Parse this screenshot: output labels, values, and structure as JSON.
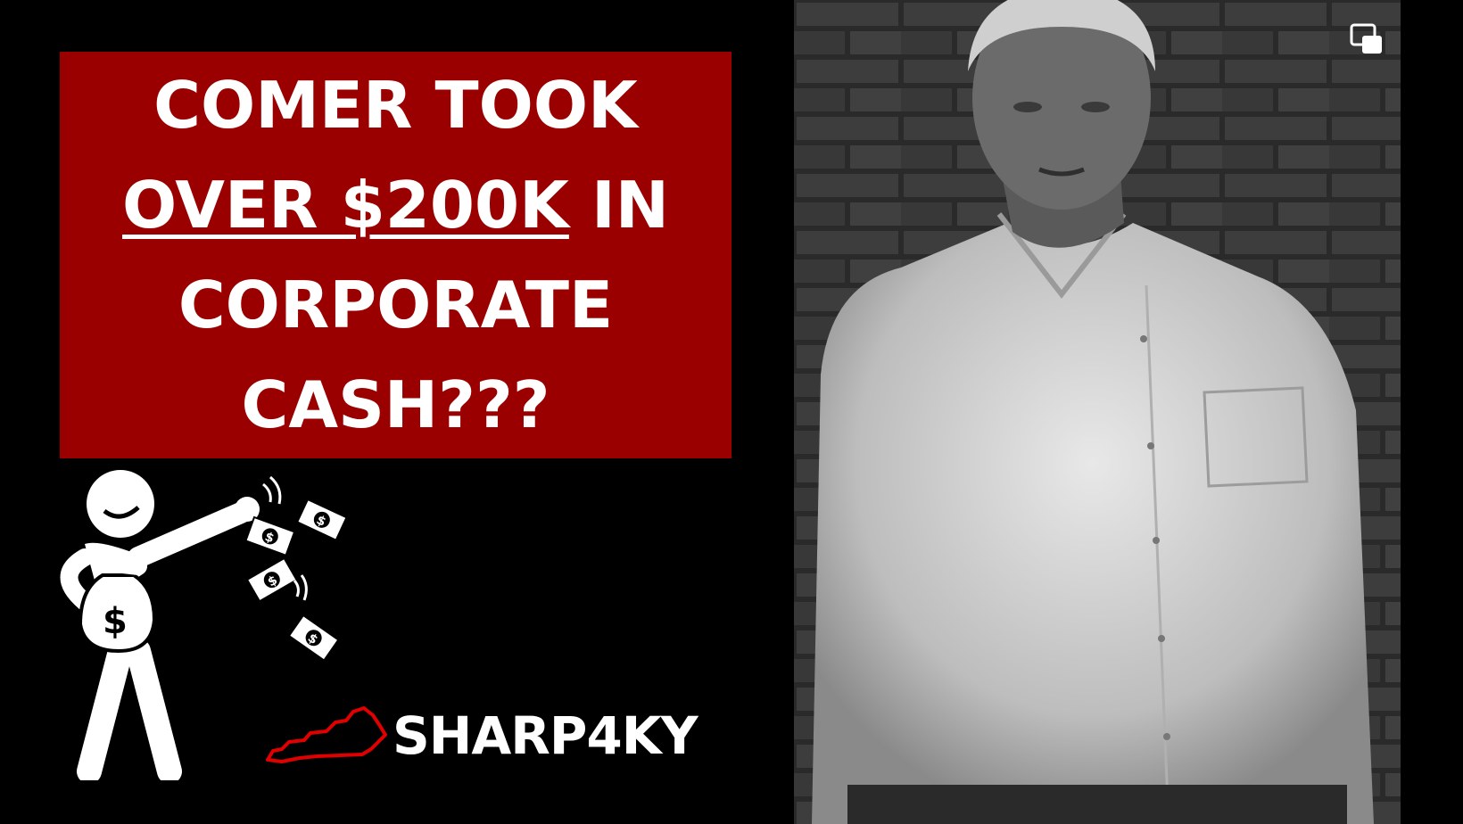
{
  "headline": {
    "line1": "COMER TOOK",
    "line2_underlined": "OVER $200K",
    "line2_rest": " IN",
    "line3": "CORPORATE",
    "line4": "CASH???"
  },
  "brand": {
    "name": "SHARP4KY"
  },
  "colors": {
    "background": "#000000",
    "headline_box": "#9b0000",
    "text": "#ffffff",
    "kentucky_outline": "#e00000"
  },
  "icons": [
    "money-throwing-figure-icon",
    "kentucky-outline-icon",
    "picture-in-picture-icon"
  ]
}
